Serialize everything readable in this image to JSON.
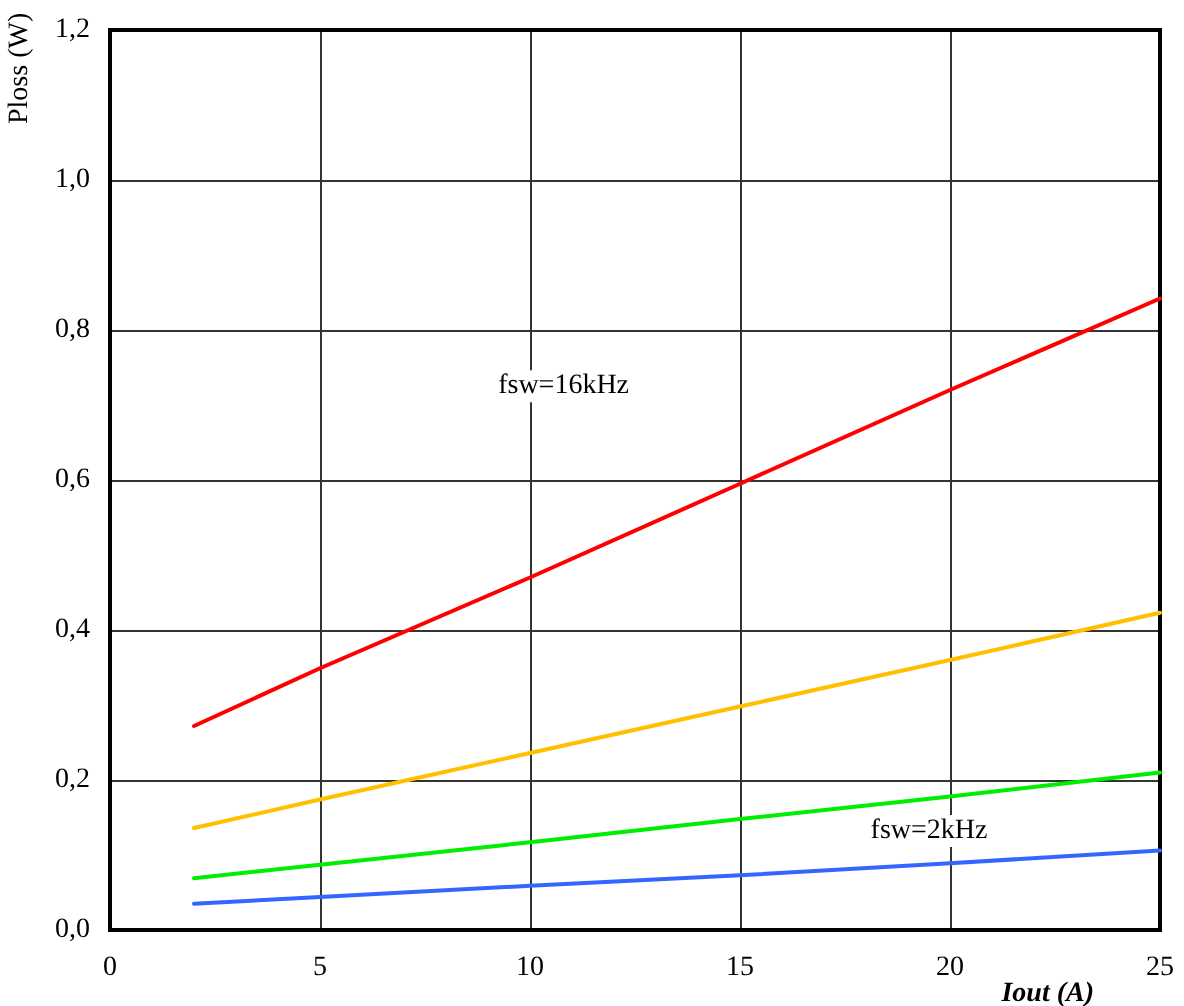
{
  "chart_data": {
    "type": "line",
    "xlabel": "Iout (A)",
    "ylabel": "Ploss (W)",
    "xlim": [
      0,
      25
    ],
    "xticks": [
      0,
      5,
      10,
      15,
      20,
      25
    ],
    "ylim": [
      0,
      1.2
    ],
    "yticks": [
      {
        "value": 0,
        "label": "0,0"
      },
      {
        "value": 0.2,
        "label": "0,2"
      },
      {
        "value": 0.4,
        "label": "0,4"
      },
      {
        "value": 0.6,
        "label": "0,6"
      },
      {
        "value": 0.8,
        "label": "0,8"
      },
      {
        "value": 1.0,
        "label": "1,0"
      },
      {
        "value": 1.2,
        "label": "1,2"
      }
    ],
    "grid": true,
    "marker": "none",
    "line_style": "solid",
    "x": [
      2,
      5,
      10,
      15,
      20,
      25
    ],
    "series": [
      {
        "color": "#ff0000",
        "values": [
          0.272,
          0.349,
          0.47,
          0.595,
          0.72,
          0.842
        ]
      },
      {
        "color": "#ffc000",
        "values": [
          0.136,
          0.174,
          0.236,
          0.298,
          0.36,
          0.423
        ]
      },
      {
        "color": "#00ee00",
        "values": [
          0.069,
          0.087,
          0.117,
          0.148,
          0.178,
          0.21
        ]
      },
      {
        "color": "#3366ff",
        "values": [
          0.035,
          0.044,
          0.059,
          0.073,
          0.089,
          0.106
        ]
      }
    ],
    "annotations": [
      "fsw=16kHz",
      "fsw=2kHz"
    ]
  }
}
